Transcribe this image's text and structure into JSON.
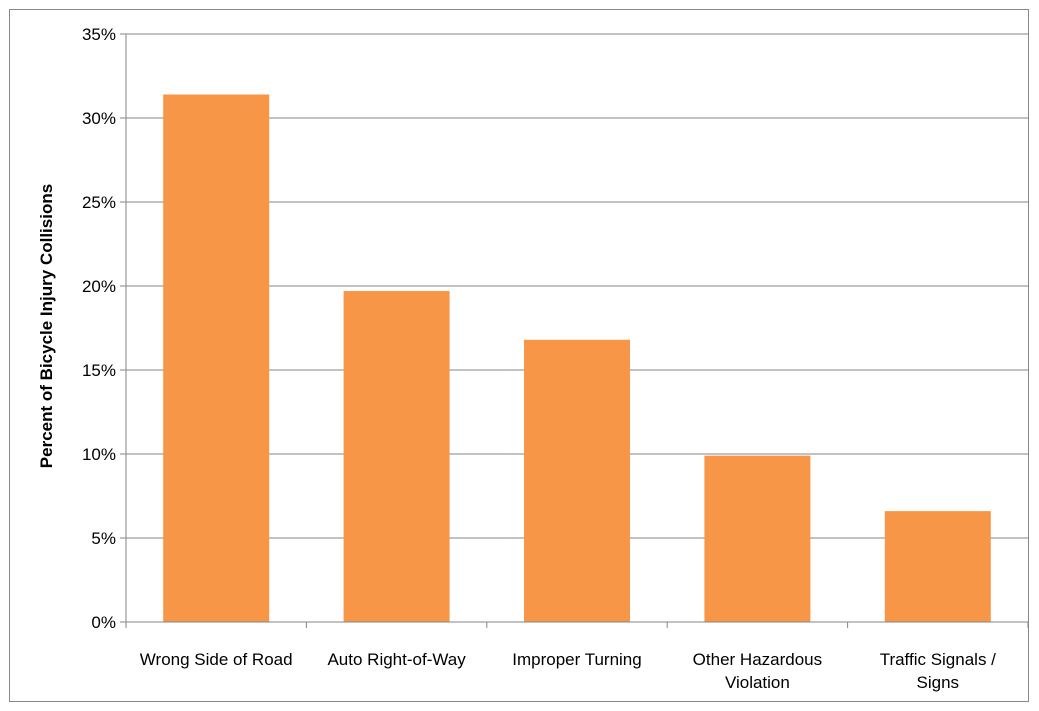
{
  "colors": {
    "bar": "#F79646",
    "grid": "#868686",
    "axis": "#868686",
    "frame": "#888888"
  },
  "chart_data": {
    "type": "bar",
    "title": "",
    "xlabel": "",
    "ylabel": "Percent of Bicycle Injury Collisions",
    "ylim": [
      0,
      35
    ],
    "yticks": [
      0,
      5,
      10,
      15,
      20,
      25,
      30,
      35
    ],
    "ytick_labels": [
      "0%",
      "5%",
      "10%",
      "15%",
      "20%",
      "25%",
      "30%",
      "35%"
    ],
    "grid": true,
    "legend": "none",
    "categories": [
      [
        "Wrong Side of Road"
      ],
      [
        "Auto Right-of-Way"
      ],
      [
        "Improper Turning"
      ],
      [
        "Other Hazardous",
        "Violation"
      ],
      [
        "Traffic Signals /",
        "Signs"
      ]
    ],
    "values": [
      31.4,
      19.7,
      16.8,
      9.9,
      6.6
    ]
  }
}
